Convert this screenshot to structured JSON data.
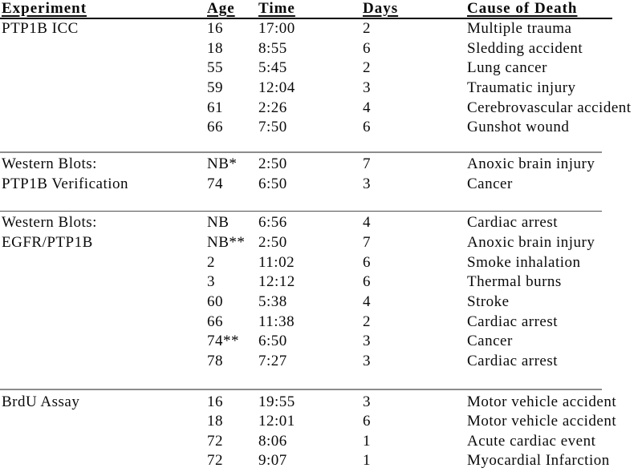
{
  "page": {
    "background": "#ffffff",
    "text_color": "#0a0a0a"
  },
  "table": {
    "columns": [
      "Experiment",
      "Age",
      "Time",
      "Days",
      "Cause of Death"
    ],
    "header_rule_color": "#000000",
    "separator_colors": [
      "#8c8c8c",
      "#4f4f4f",
      "#8c8c8c"
    ],
    "sections": [
      {
        "rows": [
          {
            "experiment": "PTP1B ICC",
            "age": "16",
            "time": "17:00",
            "days": "2",
            "cause": "Multiple trauma"
          },
          {
            "experiment": "",
            "age": "18",
            "time": "8:55",
            "days": "6",
            "cause": "Sledding accident"
          },
          {
            "experiment": "",
            "age": "55",
            "time": "5:45",
            "days": "2",
            "cause": "Lung cancer"
          },
          {
            "experiment": "",
            "age": "59",
            "time": "12:04",
            "days": "3",
            "cause": "Traumatic injury"
          },
          {
            "experiment": "",
            "age": "61",
            "time": "2:26",
            "days": "4",
            "cause": "Cerebrovascular accident"
          },
          {
            "experiment": "",
            "age": "66",
            "time": "7:50",
            "days": "6",
            "cause": "Gunshot wound"
          }
        ]
      },
      {
        "rows": [
          {
            "experiment": "Western Blots:",
            "age": "NB*",
            "time": "2:50",
            "days": "7",
            "cause": "Anoxic brain injury"
          },
          {
            "experiment": "PTP1B Verification",
            "age": "74",
            "time": "6:50",
            "days": "3",
            "cause": "Cancer"
          }
        ]
      },
      {
        "rows": [
          {
            "experiment": "Western Blots:",
            "age": "NB",
            "time": "6:56",
            "days": "4",
            "cause": "Cardiac arrest"
          },
          {
            "experiment": "EGFR/PTP1B",
            "age": "NB**",
            "time": "2:50",
            "days": "7",
            "cause": "Anoxic brain injury"
          },
          {
            "experiment": "",
            "age": "2",
            "time": "11:02",
            "days": "6",
            "cause": "Smoke inhalation"
          },
          {
            "experiment": "",
            "age": "3",
            "time": "12:12",
            "days": "6",
            "cause": "Thermal burns"
          },
          {
            "experiment": "",
            "age": "60",
            "time": "5:38",
            "days": "4",
            "cause": "Stroke"
          },
          {
            "experiment": "",
            "age": "66",
            "time": "11:38",
            "days": "2",
            "cause": "Cardiac arrest"
          },
          {
            "experiment": "",
            "age": "74**",
            "time": "6:50",
            "days": "3",
            "cause": "Cancer"
          },
          {
            "experiment": "",
            "age": "78",
            "time": "7:27",
            "days": "3",
            "cause": "Cardiac arrest"
          }
        ]
      },
      {
        "rows": [
          {
            "experiment": "BrdU Assay",
            "age": "16",
            "time": "19:55",
            "days": "3",
            "cause": "Motor vehicle accident"
          },
          {
            "experiment": "",
            "age": "18",
            "time": "12:01",
            "days": "6",
            "cause": "Motor vehicle accident"
          },
          {
            "experiment": "",
            "age": "72",
            "time": "8:06",
            "days": "1",
            "cause": "Acute cardiac event"
          },
          {
            "experiment": "",
            "age": "72",
            "time": "9:07",
            "days": "1",
            "cause": "Myocardial Infarction"
          }
        ]
      }
    ]
  }
}
